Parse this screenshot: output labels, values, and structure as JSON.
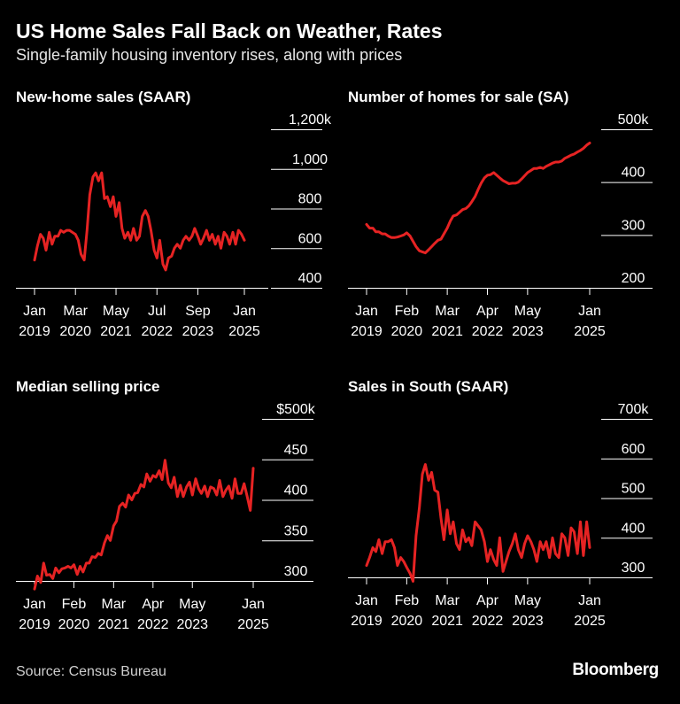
{
  "header": {
    "title": "US Home Sales Fall Back on Weather, Rates",
    "subtitle": "Single-family housing inventory rises, along with prices"
  },
  "footer": {
    "source": "Source: Census Bureau",
    "brand": "Bloomberg"
  },
  "colors": {
    "line": "#e62323",
    "background": "#000000",
    "text": "#ffffff",
    "grid": "#ffffff"
  },
  "chart_data": [
    {
      "type": "line",
      "title": "New-home sales (SAAR)",
      "xlabel": "",
      "ylabel": "",
      "ylim": [
        400,
        1200
      ],
      "yticks": [
        "1,200k",
        "1,000",
        "800",
        "600",
        "400"
      ],
      "ytick_values": [
        1200,
        1000,
        800,
        600,
        400
      ],
      "xlim": [
        2019.0,
        2025.5
      ],
      "xticks": [
        {
          "v": 2019.0,
          "top": "Jan",
          "bottom": "2019"
        },
        {
          "v": 2020.17,
          "top": "Mar",
          "bottom": "2020"
        },
        {
          "v": 2021.33,
          "top": "May",
          "bottom": "2021"
        },
        {
          "v": 2022.5,
          "top": "Jul",
          "bottom": "2022"
        },
        {
          "v": 2023.67,
          "top": "Sep",
          "bottom": "2023"
        },
        {
          "v": 2025.0,
          "top": "Jan",
          "bottom": "2025"
        }
      ],
      "x": [
        2019.0,
        2019.08,
        2019.17,
        2019.25,
        2019.33,
        2019.42,
        2019.5,
        2019.58,
        2019.67,
        2019.75,
        2019.83,
        2019.92,
        2020.0,
        2020.08,
        2020.17,
        2020.25,
        2020.33,
        2020.42,
        2020.5,
        2020.58,
        2020.67,
        2020.75,
        2020.83,
        2020.92,
        2021.0,
        2021.08,
        2021.17,
        2021.25,
        2021.33,
        2021.42,
        2021.5,
        2021.58,
        2021.67,
        2021.75,
        2021.83,
        2021.92,
        2022.0,
        2022.08,
        2022.17,
        2022.25,
        2022.33,
        2022.42,
        2022.5,
        2022.58,
        2022.67,
        2022.75,
        2022.83,
        2022.92,
        2023.0,
        2023.08,
        2023.17,
        2023.25,
        2023.33,
        2023.42,
        2023.5,
        2023.58,
        2023.67,
        2023.75,
        2023.83,
        2023.92,
        2024.0,
        2024.08,
        2024.17,
        2024.25,
        2024.33,
        2024.42,
        2024.5,
        2024.58,
        2024.67,
        2024.75,
        2024.83,
        2024.92,
        2025.0
      ],
      "series": [
        {
          "name": "New-home sales",
          "values": [
            540,
            610,
            670,
            650,
            590,
            680,
            620,
            660,
            660,
            690,
            680,
            690,
            690,
            680,
            670,
            640,
            570,
            540,
            690,
            870,
            960,
            980,
            940,
            980,
            850,
            860,
            810,
            860,
            760,
            830,
            700,
            650,
            680,
            640,
            700,
            640,
            660,
            760,
            790,
            760,
            690,
            590,
            550,
            640,
            520,
            490,
            550,
            560,
            600,
            620,
            600,
            640,
            660,
            640,
            660,
            700,
            660,
            620,
            650,
            690,
            640,
            670,
            620,
            660,
            600,
            680,
            660,
            620,
            680,
            620,
            690,
            670,
            640
          ]
        }
      ]
    },
    {
      "type": "line",
      "title": "Number of homes for sale (SA)",
      "xlabel": "",
      "ylabel": "",
      "ylim": [
        200,
        500
      ],
      "yticks": [
        "500k",
        "400",
        "300",
        "200"
      ],
      "ytick_values": [
        500,
        400,
        300,
        200
      ],
      "xlim": [
        2019.0,
        2025.5
      ],
      "xticks": [
        {
          "v": 2019.0,
          "top": "Jan",
          "bottom": "2019"
        },
        {
          "v": 2020.08,
          "top": "Feb",
          "bottom": "2020"
        },
        {
          "v": 2021.17,
          "top": "Mar",
          "bottom": "2021"
        },
        {
          "v": 2022.25,
          "top": "Apr",
          "bottom": "2022"
        },
        {
          "v": 2023.33,
          "top": "May",
          "bottom": "2023"
        },
        {
          "v": 2025.0,
          "top": "Jan",
          "bottom": "2025"
        }
      ],
      "x": [
        2019.0,
        2019.08,
        2019.17,
        2019.25,
        2019.33,
        2019.42,
        2019.5,
        2019.58,
        2019.67,
        2019.75,
        2019.83,
        2019.92,
        2020.0,
        2020.08,
        2020.17,
        2020.25,
        2020.33,
        2020.42,
        2020.5,
        2020.58,
        2020.67,
        2020.75,
        2020.83,
        2020.92,
        2021.0,
        2021.08,
        2021.17,
        2021.25,
        2021.33,
        2021.42,
        2021.5,
        2021.58,
        2021.67,
        2021.75,
        2021.83,
        2021.92,
        2022.0,
        2022.08,
        2022.17,
        2022.25,
        2022.33,
        2022.42,
        2022.5,
        2022.58,
        2022.67,
        2022.75,
        2022.83,
        2022.92,
        2023.0,
        2023.08,
        2023.17,
        2023.25,
        2023.33,
        2023.42,
        2023.5,
        2023.58,
        2023.67,
        2023.75,
        2023.83,
        2023.92,
        2024.0,
        2024.08,
        2024.17,
        2024.25,
        2024.33,
        2024.42,
        2024.5,
        2024.58,
        2024.67,
        2024.75,
        2024.83,
        2024.92,
        2025.0
      ],
      "series": [
        {
          "name": "Homes for sale",
          "values": [
            320,
            313,
            313,
            306,
            306,
            302,
            302,
            298,
            295,
            295,
            296,
            298,
            300,
            304,
            298,
            288,
            278,
            270,
            268,
            266,
            272,
            278,
            284,
            290,
            292,
            302,
            313,
            326,
            336,
            338,
            343,
            348,
            350,
            355,
            363,
            373,
            386,
            398,
            408,
            413,
            414,
            418,
            413,
            408,
            403,
            400,
            397,
            398,
            398,
            400,
            406,
            412,
            418,
            422,
            426,
            426,
            428,
            426,
            430,
            433,
            436,
            438,
            438,
            440,
            445,
            448,
            451,
            453,
            457,
            460,
            464,
            470,
            474
          ]
        }
      ]
    },
    {
      "type": "line",
      "title": "Median selling price",
      "xlabel": "",
      "ylabel": "",
      "ylim": [
        300,
        500
      ],
      "yticks": [
        "$500k",
        "450",
        "400",
        "350",
        "300"
      ],
      "ytick_values": [
        500,
        450,
        400,
        350,
        300
      ],
      "xlim": [
        2019.0,
        2025.5
      ],
      "xticks": [
        {
          "v": 2019.0,
          "top": "Jan",
          "bottom": "2019"
        },
        {
          "v": 2020.08,
          "top": "Feb",
          "bottom": "2020"
        },
        {
          "v": 2021.17,
          "top": "Mar",
          "bottom": "2021"
        },
        {
          "v": 2022.25,
          "top": "Apr",
          "bottom": "2022"
        },
        {
          "v": 2023.33,
          "top": "May",
          "bottom": "2023"
        },
        {
          "v": 2025.0,
          "top": "Jan",
          "bottom": "2025"
        }
      ],
      "x": [
        2019.0,
        2019.08,
        2019.17,
        2019.25,
        2019.33,
        2019.42,
        2019.5,
        2019.58,
        2019.67,
        2019.75,
        2019.83,
        2019.92,
        2020.0,
        2020.08,
        2020.17,
        2020.25,
        2020.33,
        2020.42,
        2020.5,
        2020.58,
        2020.67,
        2020.75,
        2020.83,
        2020.92,
        2021.0,
        2021.08,
        2021.17,
        2021.25,
        2021.33,
        2021.42,
        2021.5,
        2021.58,
        2021.67,
        2021.75,
        2021.83,
        2021.92,
        2022.0,
        2022.08,
        2022.17,
        2022.25,
        2022.33,
        2022.42,
        2022.5,
        2022.58,
        2022.67,
        2022.75,
        2022.83,
        2022.92,
        2023.0,
        2023.08,
        2023.17,
        2023.25,
        2023.33,
        2023.42,
        2023.5,
        2023.58,
        2023.67,
        2023.75,
        2023.83,
        2023.92,
        2024.0,
        2024.08,
        2024.17,
        2024.25,
        2024.33,
        2024.42,
        2024.5,
        2024.58,
        2024.67,
        2024.75,
        2024.83,
        2024.92,
        2025.0
      ],
      "series": [
        {
          "name": "Median price",
          "values": [
            290,
            306,
            298,
            322,
            307,
            308,
            303,
            316,
            310,
            315,
            316,
            318,
            316,
            320,
            308,
            318,
            311,
            322,
            322,
            330,
            329,
            334,
            332,
            347,
            356,
            350,
            368,
            374,
            392,
            396,
            391,
            406,
            400,
            408,
            409,
            419,
            416,
            432,
            423,
            430,
            428,
            436,
            425,
            449,
            421,
            415,
            428,
            404,
            418,
            404,
            416,
            422,
            406,
            426,
            414,
            408,
            417,
            404,
            416,
            414,
            406,
            424,
            404,
            412,
            417,
            402,
            426,
            408,
            408,
            420,
            405,
            387,
            439
          ]
        }
      ]
    },
    {
      "type": "line",
      "title": "Sales in South (SAAR)",
      "xlabel": "",
      "ylabel": "",
      "ylim": [
        300,
        700
      ],
      "yticks": [
        "700k",
        "600",
        "500",
        "400",
        "300"
      ],
      "ytick_values": [
        700,
        600,
        500,
        400,
        300
      ],
      "xlim": [
        2019.0,
        2025.5
      ],
      "xticks": [
        {
          "v": 2019.0,
          "top": "Jan",
          "bottom": "2019"
        },
        {
          "v": 2020.08,
          "top": "Feb",
          "bottom": "2020"
        },
        {
          "v": 2021.17,
          "top": "Mar",
          "bottom": "2021"
        },
        {
          "v": 2022.25,
          "top": "Apr",
          "bottom": "2022"
        },
        {
          "v": 2023.33,
          "top": "May",
          "bottom": "2023"
        },
        {
          "v": 2025.0,
          "top": "Jan",
          "bottom": "2025"
        }
      ],
      "x": [
        2019.0,
        2019.08,
        2019.17,
        2019.25,
        2019.33,
        2019.42,
        2019.5,
        2019.58,
        2019.67,
        2019.75,
        2019.83,
        2019.92,
        2020.0,
        2020.08,
        2020.17,
        2020.25,
        2020.33,
        2020.42,
        2020.5,
        2020.58,
        2020.67,
        2020.75,
        2020.83,
        2020.92,
        2021.0,
        2021.08,
        2021.17,
        2021.25,
        2021.33,
        2021.42,
        2021.5,
        2021.58,
        2021.67,
        2021.75,
        2021.83,
        2021.92,
        2022.0,
        2022.08,
        2022.17,
        2022.25,
        2022.33,
        2022.42,
        2022.5,
        2022.58,
        2022.67,
        2022.75,
        2022.83,
        2022.92,
        2023.0,
        2023.08,
        2023.17,
        2023.25,
        2023.33,
        2023.42,
        2023.5,
        2023.58,
        2023.67,
        2023.75,
        2023.83,
        2023.92,
        2024.0,
        2024.08,
        2024.17,
        2024.25,
        2024.33,
        2024.42,
        2024.5,
        2024.58,
        2024.67,
        2024.75,
        2024.83,
        2024.92,
        2025.0
      ],
      "series": [
        {
          "name": "South sales",
          "values": [
            330,
            350,
            375,
            365,
            395,
            360,
            390,
            390,
            395,
            375,
            330,
            350,
            340,
            325,
            310,
            290,
            405,
            475,
            560,
            585,
            545,
            565,
            520,
            515,
            450,
            395,
            470,
            410,
            440,
            385,
            370,
            420,
            390,
            400,
            380,
            440,
            430,
            420,
            390,
            340,
            370,
            345,
            330,
            400,
            315,
            340,
            365,
            385,
            410,
            370,
            350,
            385,
            405,
            390,
            370,
            340,
            390,
            370,
            390,
            350,
            400,
            360,
            350,
            410,
            400,
            355,
            425,
            415,
            360,
            440,
            355,
            440,
            375
          ]
        }
      ]
    }
  ]
}
